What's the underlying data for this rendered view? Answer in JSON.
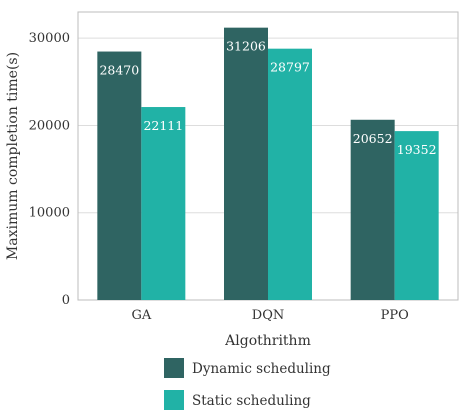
{
  "chart_data": {
    "type": "bar",
    "title": "",
    "xlabel": "Algothrithm",
    "ylabel": "Maximum completion time(s)",
    "categories": [
      "GA",
      "DQN",
      "PPO"
    ],
    "series": [
      {
        "name": "Dynamic scheduling",
        "values": [
          28470,
          31206,
          20652
        ],
        "color": "#2f6462"
      },
      {
        "name": "Static scheduling",
        "values": [
          22111,
          28797,
          19352
        ],
        "color": "#21b2a6"
      }
    ],
    "ylim": [
      0,
      33000
    ],
    "yticks": [
      0,
      10000,
      20000,
      30000
    ],
    "grid": true,
    "legend_position": "bottom",
    "data_labels": true
  }
}
